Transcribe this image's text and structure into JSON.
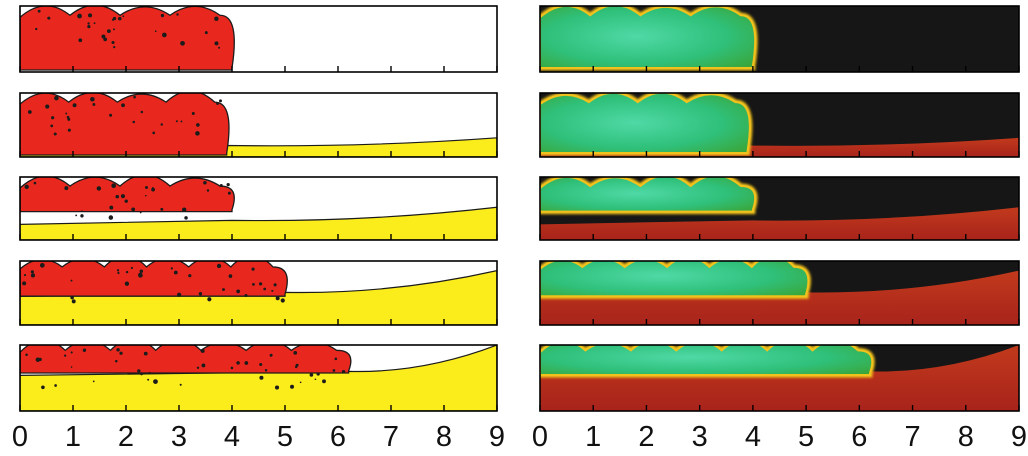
{
  "figure": {
    "columns": [
      {
        "id": "left",
        "colormap": "two-phase",
        "colors": {
          "background": "#ffffff",
          "current": "#e8281e",
          "ambient": "#fbec1c",
          "interface": "#1b1b1b"
        }
      },
      {
        "id": "right",
        "colormap": "density",
        "colors": {
          "background": "#161616",
          "current_core": "#2fbf74",
          "current_rim": "#f2c21c",
          "ambient": "#b3271c"
        }
      }
    ],
    "panels": [
      {
        "row": 1,
        "front": 4.0,
        "ambient_depth_right": 0.0
      },
      {
        "row": 2,
        "front": 3.9,
        "ambient_depth_right": 0.3
      },
      {
        "row": 3,
        "front": 4.0,
        "ambient_depth_right": 0.52
      },
      {
        "row": 4,
        "front": 5.0,
        "ambient_depth_right": 0.85
      },
      {
        "row": 5,
        "front": 6.2,
        "ambient_depth_right": 1.0
      }
    ],
    "x_axis": {
      "ticks": [
        "0",
        "1",
        "2",
        "3",
        "4",
        "5",
        "6",
        "7",
        "8",
        "9"
      ]
    }
  }
}
